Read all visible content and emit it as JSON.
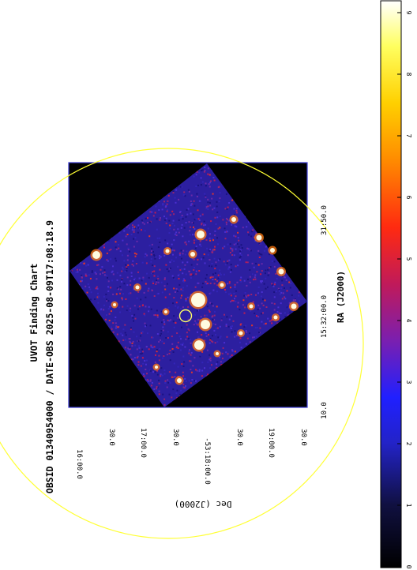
{
  "title": "UVOT Finding Chart",
  "subtitle": "OBSID 01340954000 / DATE-OBS 2025-08-09T17:08:18.9",
  "xlabel": "RA (J2000)",
  "ylabel": "Dec (J2000)",
  "ra_ticks": [
    "10.0",
    "15:32:00.0",
    "31:50.0"
  ],
  "dec_ticks": [
    "16:00.0",
    "30.0",
    "17:00.0",
    "30.0",
    "-53:18:00.0",
    "30.0",
    "19:00.0",
    "30.0"
  ],
  "colorbar": {
    "ticks": [
      "0",
      "1",
      "2",
      "3",
      "4",
      "5",
      "6",
      "7",
      "8",
      "9"
    ],
    "range": [
      0,
      9
    ]
  },
  "colors": {
    "frame": "#3b3bd6",
    "background": "#000000",
    "field_circle": "#ffff33",
    "source_circle": "#ffff66",
    "noise_base": "#2a1f9c",
    "noise_hot": "#d11a55"
  }
}
